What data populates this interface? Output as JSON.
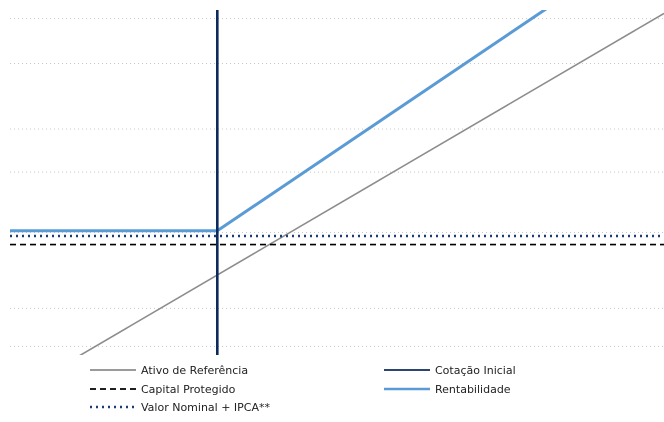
{
  "chart_data": {
    "type": "line",
    "title": "",
    "xlabel": "",
    "ylabel": "",
    "xlim": [
      0,
      100
    ],
    "ylim": [
      0,
      100
    ],
    "grid": {
      "horizontal": true,
      "style": "dotted",
      "levels": [
        2.5,
        13.5,
        35.5,
        53,
        65.5,
        84.5,
        97.5
      ]
    },
    "legend_position": "bottom",
    "series": [
      {
        "name": "Ativo de Referência",
        "style": "solid",
        "color": "#8c8c8c",
        "points": [
          [
            0,
            -12
          ],
          [
            100,
            99
          ]
        ]
      },
      {
        "name": "Capital Protegido",
        "style": "dashed",
        "color": "#000000",
        "points": [
          [
            0,
            32
          ],
          [
            100,
            32
          ]
        ]
      },
      {
        "name": "Valor Nominal + IPCA**",
        "style": "dotted",
        "color": "#1f3a7a",
        "points": [
          [
            0,
            34.5
          ],
          [
            100,
            34.5
          ]
        ]
      },
      {
        "name": "Cotação Inicial",
        "style": "solid",
        "color": "#0d2a5c",
        "points": [
          [
            31.7,
            101
          ],
          [
            31.7,
            -5
          ]
        ]
      },
      {
        "name": "Rentabilidade",
        "style": "solid",
        "color": "#5b9bd5",
        "points": [
          [
            0,
            36
          ],
          [
            31.7,
            36
          ],
          [
            82.5,
            101
          ]
        ]
      }
    ],
    "legend": [
      "Ativo de Referência",
      "Cotação Inicial",
      "Capital Protegido",
      "Rentabilidade",
      "Valor Nominal + IPCA**"
    ]
  }
}
